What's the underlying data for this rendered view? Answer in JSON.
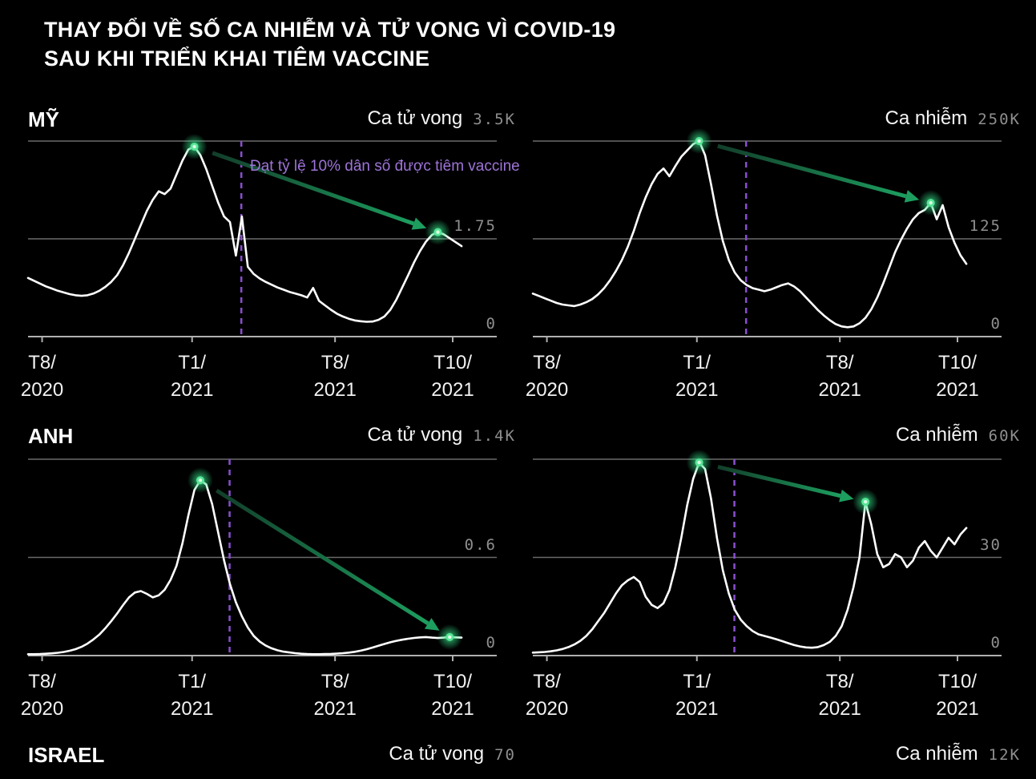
{
  "title": {
    "line1": "THAY ĐỔI VỀ SỐ CA NHIỄM VÀ TỬ VONG VÌ COVID-19",
    "line2": "SAU KHI TRIỂN KHAI TIÊM VACCINE"
  },
  "annotation": {
    "text": "Đạt tỷ lệ 10% dân số được tiêm vaccine",
    "color": "#9e74d8"
  },
  "colors": {
    "background": "#000000",
    "series_line": "#ffffff",
    "grid_line": "#6a6a6a",
    "baseline": "#b0b0b0",
    "y_label": "#8f8f8f",
    "tick_label": "#f2f2f2",
    "vaccine_line": "#8a4fd0",
    "peak_dot": "#35e08a",
    "peak_dot_core": "#57e695",
    "peak_dot_center": "#dcffe9",
    "arrow_start": "#123e2a",
    "arrow_end": "#1d9e5f"
  },
  "x_ticks": [
    {
      "line1": "T8/",
      "line2": "2020",
      "pos": 0.03
    },
    {
      "line1": "T1/",
      "line2": "2021",
      "pos": 0.35
    },
    {
      "line1": "T8/",
      "line2": "2021",
      "pos": 0.655
    },
    {
      "line1": "T10/",
      "line2": "2021",
      "pos": 0.906
    }
  ],
  "chart_data": [
    {
      "id": "us-deaths",
      "type": "line",
      "country": "MỸ",
      "metric": "Ca tử vong",
      "y_axis": {
        "top": "3.5K",
        "mid": "1.75",
        "bottom": "0"
      },
      "ylim": [
        0,
        3500
      ],
      "x_range": [
        "T8/2020",
        "T11/2021"
      ],
      "grid": true,
      "vaccine_line_pos": 0.455,
      "annotation_visible": true,
      "values": [
        1050,
        1000,
        950,
        900,
        860,
        820,
        790,
        760,
        740,
        730,
        740,
        770,
        820,
        890,
        980,
        1100,
        1280,
        1500,
        1750,
        2000,
        2250,
        2450,
        2600,
        2550,
        2650,
        2900,
        3150,
        3350,
        3400,
        3250,
        3000,
        2700,
        2400,
        2150,
        2050,
        1450,
        2150,
        1250,
        1120,
        1040,
        980,
        930,
        880,
        840,
        800,
        770,
        740,
        700,
        870,
        640,
        560,
        480,
        410,
        360,
        320,
        290,
        275,
        265,
        270,
        300,
        360,
        480,
        660,
        880,
        1100,
        1330,
        1530,
        1700,
        1820,
        1870,
        1830,
        1760,
        1690,
        1620
      ],
      "peaks": [
        {
          "index": 28,
          "value": 3400
        },
        {
          "index": 69,
          "value": 1870
        }
      ]
    },
    {
      "id": "us-cases",
      "type": "line",
      "country": "MỸ",
      "metric": "Ca nhiễm",
      "y_axis": {
        "top": "250K",
        "mid": "125",
        "bottom": "0"
      },
      "ylim": [
        0,
        250000
      ],
      "x_range": [
        "T8/2020",
        "T11/2021"
      ],
      "grid": true,
      "vaccine_line_pos": 0.455,
      "annotation_visible": false,
      "values": [
        55000,
        52000,
        49000,
        46000,
        43000,
        41000,
        40000,
        39000,
        41000,
        44000,
        48000,
        54000,
        62000,
        72000,
        84000,
        98000,
        115000,
        135000,
        158000,
        178000,
        195000,
        208000,
        215000,
        205000,
        218000,
        230000,
        238000,
        246000,
        250000,
        232000,
        195000,
        155000,
        122000,
        98000,
        82000,
        72000,
        66000,
        62000,
        60000,
        58000,
        60000,
        63000,
        66000,
        68000,
        64000,
        58000,
        50000,
        42000,
        34000,
        27000,
        21000,
        16000,
        13000,
        12000,
        13000,
        17000,
        24000,
        35000,
        50000,
        68000,
        88000,
        108000,
        124000,
        138000,
        150000,
        158000,
        162000,
        171000,
        150000,
        168000,
        140000,
        120000,
        104000,
        93000
      ],
      "peaks": [
        {
          "index": 28,
          "value": 250000
        },
        {
          "index": 67,
          "value": 171000
        }
      ]
    },
    {
      "id": "uk-deaths",
      "type": "line",
      "country": "ANH",
      "metric": "Ca tử vong",
      "y_axis": {
        "top": "1.4K",
        "mid": "0.6",
        "bottom": "0"
      },
      "ylim": [
        0,
        1400
      ],
      "x_range": [
        "T8/2020",
        "T11/2021"
      ],
      "grid": true,
      "vaccine_line_pos": 0.43,
      "annotation_visible": false,
      "values": [
        10,
        10,
        11,
        13,
        16,
        20,
        26,
        34,
        46,
        62,
        85,
        115,
        150,
        195,
        245,
        300,
        360,
        415,
        450,
        460,
        440,
        415,
        430,
        470,
        540,
        640,
        800,
        1000,
        1180,
        1250,
        1220,
        1080,
        880,
        680,
        510,
        380,
        280,
        200,
        140,
        100,
        72,
        52,
        38,
        28,
        22,
        17,
        13,
        11,
        10,
        10,
        11,
        12,
        14,
        17,
        21,
        27,
        35,
        45,
        57,
        70,
        83,
        95,
        105,
        113,
        120,
        126,
        130,
        132,
        128,
        125,
        128,
        132,
        130,
        128
      ],
      "peaks": [
        {
          "index": 29,
          "value": 1250
        },
        {
          "index": 71,
          "value": 132
        }
      ]
    },
    {
      "id": "uk-cases",
      "type": "line",
      "country": "ANH",
      "metric": "Ca nhiễm",
      "y_axis": {
        "top": "60K",
        "mid": "30",
        "bottom": "0"
      },
      "ylim": [
        0,
        60000
      ],
      "x_range": [
        "T8/2020",
        "T11/2021"
      ],
      "grid": true,
      "vaccine_line_pos": 0.43,
      "annotation_visible": false,
      "values": [
        900,
        1000,
        1100,
        1300,
        1600,
        2000,
        2600,
        3400,
        4500,
        6000,
        8000,
        10500,
        13000,
        16000,
        19000,
        21500,
        23000,
        24000,
        22500,
        18000,
        15500,
        14500,
        16000,
        20000,
        27000,
        36000,
        46000,
        54000,
        59000,
        57000,
        48000,
        36000,
        26000,
        19000,
        14000,
        11000,
        9000,
        7500,
        6500,
        6000,
        5500,
        5000,
        4400,
        3800,
        3200,
        2800,
        2500,
        2400,
        2600,
        3200,
        4200,
        6000,
        9000,
        14000,
        21000,
        30000,
        47000,
        40000,
        31000,
        27000,
        28000,
        31000,
        30000,
        27000,
        29000,
        33000,
        35000,
        32000,
        30000,
        33000,
        36000,
        34000,
        37000,
        39000
      ],
      "peaks": [
        {
          "index": 28,
          "value": 59000
        },
        {
          "index": 56,
          "value": 47000
        }
      ]
    },
    {
      "id": "israel-deaths",
      "type": "line",
      "country": "ISRAEL",
      "metric": "Ca tử vong",
      "y_axis": {
        "top": "70"
      },
      "header_only": true
    },
    {
      "id": "israel-cases",
      "type": "line",
      "country": "ISRAEL",
      "metric": "Ca nhiễm",
      "y_axis": {
        "top": "12K"
      },
      "header_only": true
    }
  ]
}
